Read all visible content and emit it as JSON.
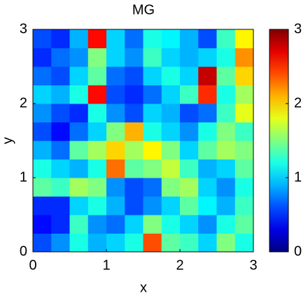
{
  "chart_data": {
    "type": "heatmap",
    "title": "MG",
    "x_label": "x",
    "y_label": "y",
    "xlim": [
      0,
      3
    ],
    "ylim": [
      0,
      3
    ],
    "xticks": [
      0,
      1,
      2,
      3
    ],
    "yticks": [
      0,
      1,
      2,
      3
    ],
    "colormap": "jet",
    "colorbar": {
      "lim": [
        0,
        3
      ],
      "ticks": [
        0,
        1,
        2,
        3
      ]
    },
    "z": [
      [
        0.6,
        0.8,
        1.2,
        0.9,
        1.0,
        1.2,
        2.4,
        1.4,
        1.3,
        1.0,
        1.5,
        1.2
      ],
      [
        0.4,
        0.5,
        1.3,
        0.8,
        0.7,
        1.0,
        1.5,
        1.2,
        1.0,
        0.8,
        1.2,
        1.4
      ],
      [
        0.5,
        0.5,
        1.0,
        1.2,
        0.9,
        0.6,
        0.8,
        1.0,
        1.4,
        1.1,
        0.9,
        1.3
      ],
      [
        1.4,
        1.3,
        1.6,
        1.5,
        0.8,
        0.6,
        0.7,
        1.5,
        1.6,
        1.0,
        0.8,
        1.2
      ],
      [
        1.2,
        1.0,
        0.9,
        1.2,
        2.3,
        1.4,
        1.5,
        1.7,
        1.3,
        0.9,
        1.0,
        1.4
      ],
      [
        0.9,
        0.7,
        1.4,
        1.6,
        2.0,
        1.6,
        1.9,
        1.5,
        1.0,
        1.4,
        1.6,
        1.5
      ],
      [
        0.6,
        0.4,
        0.7,
        1.0,
        1.5,
        2.1,
        1.2,
        1.0,
        0.8,
        1.2,
        1.5,
        1.3
      ],
      [
        0.8,
        0.6,
        0.5,
        1.2,
        0.8,
        0.6,
        1.0,
        0.9,
        0.6,
        0.7,
        1.3,
        1.8
      ],
      [
        1.0,
        0.9,
        1.2,
        2.6,
        0.6,
        0.5,
        0.7,
        1.0,
        1.3,
        2.5,
        1.2,
        1.6
      ],
      [
        0.7,
        0.6,
        1.0,
        1.4,
        0.7,
        0.6,
        1.0,
        1.2,
        1.0,
        2.8,
        1.4,
        2.0
      ],
      [
        0.5,
        0.7,
        0.8,
        1.5,
        1.0,
        0.8,
        1.3,
        1.0,
        0.9,
        1.0,
        1.2,
        2.2
      ],
      [
        0.6,
        0.5,
        0.9,
        2.6,
        1.0,
        0.7,
        1.2,
        1.1,
        0.9,
        0.6,
        1.3,
        1.9
      ]
    ]
  }
}
